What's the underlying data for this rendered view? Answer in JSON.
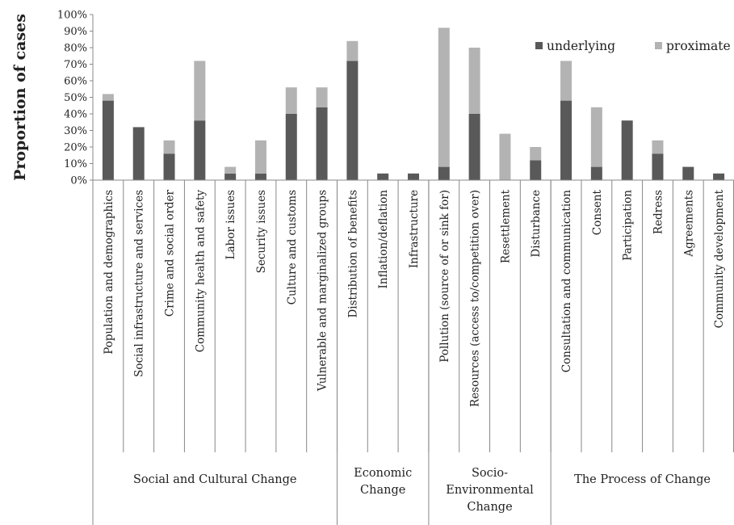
{
  "chart_data": {
    "type": "bar",
    "stacked": true,
    "ylabel": "Proportion of cases",
    "ylim": [
      0,
      1
    ],
    "y_ticks": [
      "0%",
      "10%",
      "20%",
      "30%",
      "40%",
      "50%",
      "60%",
      "70%",
      "80%",
      "90%",
      "100%"
    ],
    "grid": false,
    "legend_position": "top-right",
    "categories": [
      "Population and demographics",
      "Social infrastructure and services",
      "Crime and social order",
      "Community health and safety",
      "Labor issues",
      "Security issues",
      "Culture and customs",
      "Vulnerable and marginalized groups",
      "Distribution of benefits",
      "Inflation/deflation",
      "Infrastructure",
      "Pollution (source of or sink for)",
      "Resources (access to/competition over)",
      "Resettlement",
      "Disturbance",
      "Consultation and communication",
      "Consent",
      "Participation",
      "Redress",
      "Agreements",
      "Community development"
    ],
    "groups": [
      {
        "label_lines": [
          "Social and Cultural Change"
        ],
        "count": 8
      },
      {
        "label_lines": [
          "Economic",
          "Change"
        ],
        "count": 3
      },
      {
        "label_lines": [
          "Socio-",
          "Environmental",
          "Change"
        ],
        "count": 4
      },
      {
        "label_lines": [
          "The Process of Change"
        ],
        "count": 6
      }
    ],
    "series": [
      {
        "name": "underlying",
        "color": "#595959",
        "values": [
          0.48,
          0.32,
          0.16,
          0.36,
          0.04,
          0.04,
          0.4,
          0.44,
          0.72,
          0.04,
          0.04,
          0.08,
          0.4,
          0.0,
          0.12,
          0.48,
          0.08,
          0.36,
          0.16,
          0.08,
          0.04
        ]
      },
      {
        "name": "proximate",
        "color": "#b3b3b3",
        "values": [
          0.04,
          0.0,
          0.08,
          0.36,
          0.04,
          0.2,
          0.16,
          0.12,
          0.12,
          0.0,
          0.0,
          0.84,
          0.4,
          0.28,
          0.08,
          0.24,
          0.36,
          0.0,
          0.08,
          0.0,
          0.0
        ]
      }
    ]
  }
}
